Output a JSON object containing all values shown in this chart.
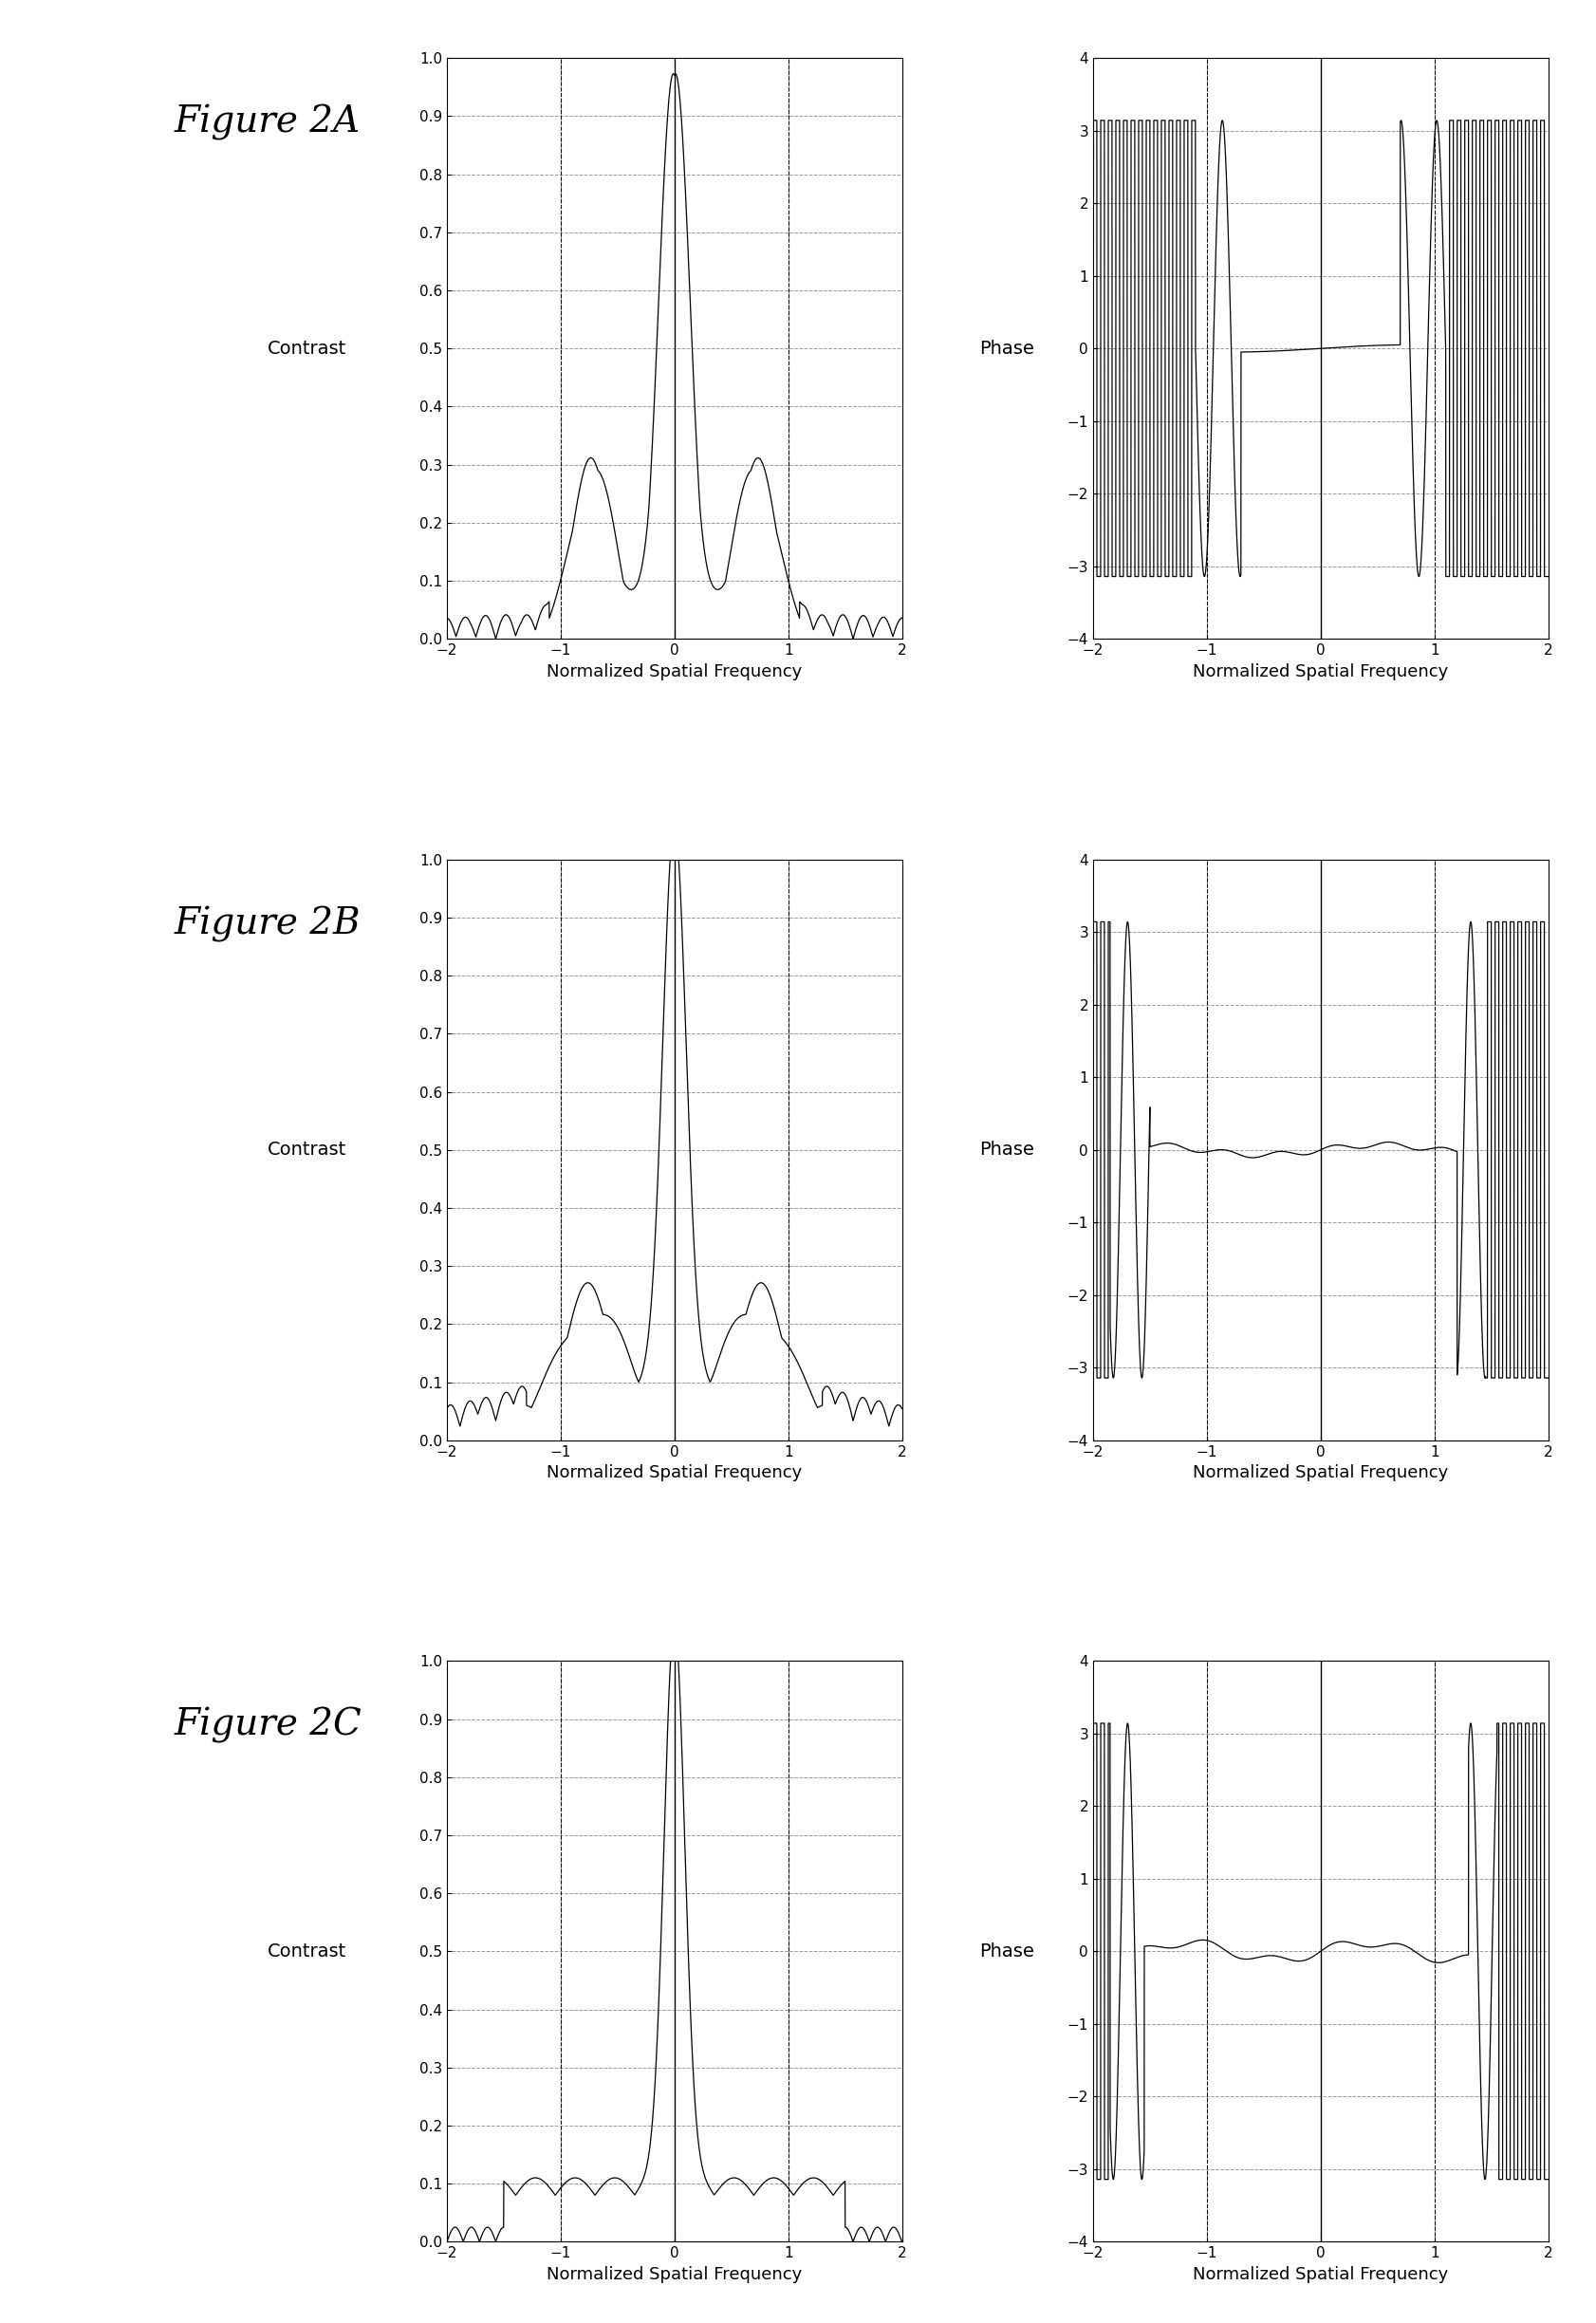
{
  "figures": [
    "Figure 2A",
    "Figure 2B",
    "Figure 2C"
  ],
  "contrast_ylabel": "Contrast",
  "phase_ylabel": "Phase",
  "xlabel": "Normalized Spatial Frequency",
  "contrast_ylim": [
    0,
    1
  ],
  "phase_ylim": [
    -4,
    4
  ],
  "xlim": [
    -2,
    2
  ],
  "contrast_yticks": [
    0,
    0.1,
    0.2,
    0.3,
    0.4,
    0.5,
    0.6,
    0.7,
    0.8,
    0.9,
    1.0
  ],
  "phase_yticks": [
    -4,
    -3,
    -2,
    -1,
    0,
    1,
    2,
    3,
    4
  ],
  "xticks": [
    -2,
    -1,
    0,
    1,
    2
  ],
  "bg_color": "white",
  "line_color": "black",
  "grid_color": "#888888",
  "fig_label_fontsize": 28,
  "axis_label_fontsize": 13,
  "tick_fontsize": 11,
  "title_fontsize": 20
}
